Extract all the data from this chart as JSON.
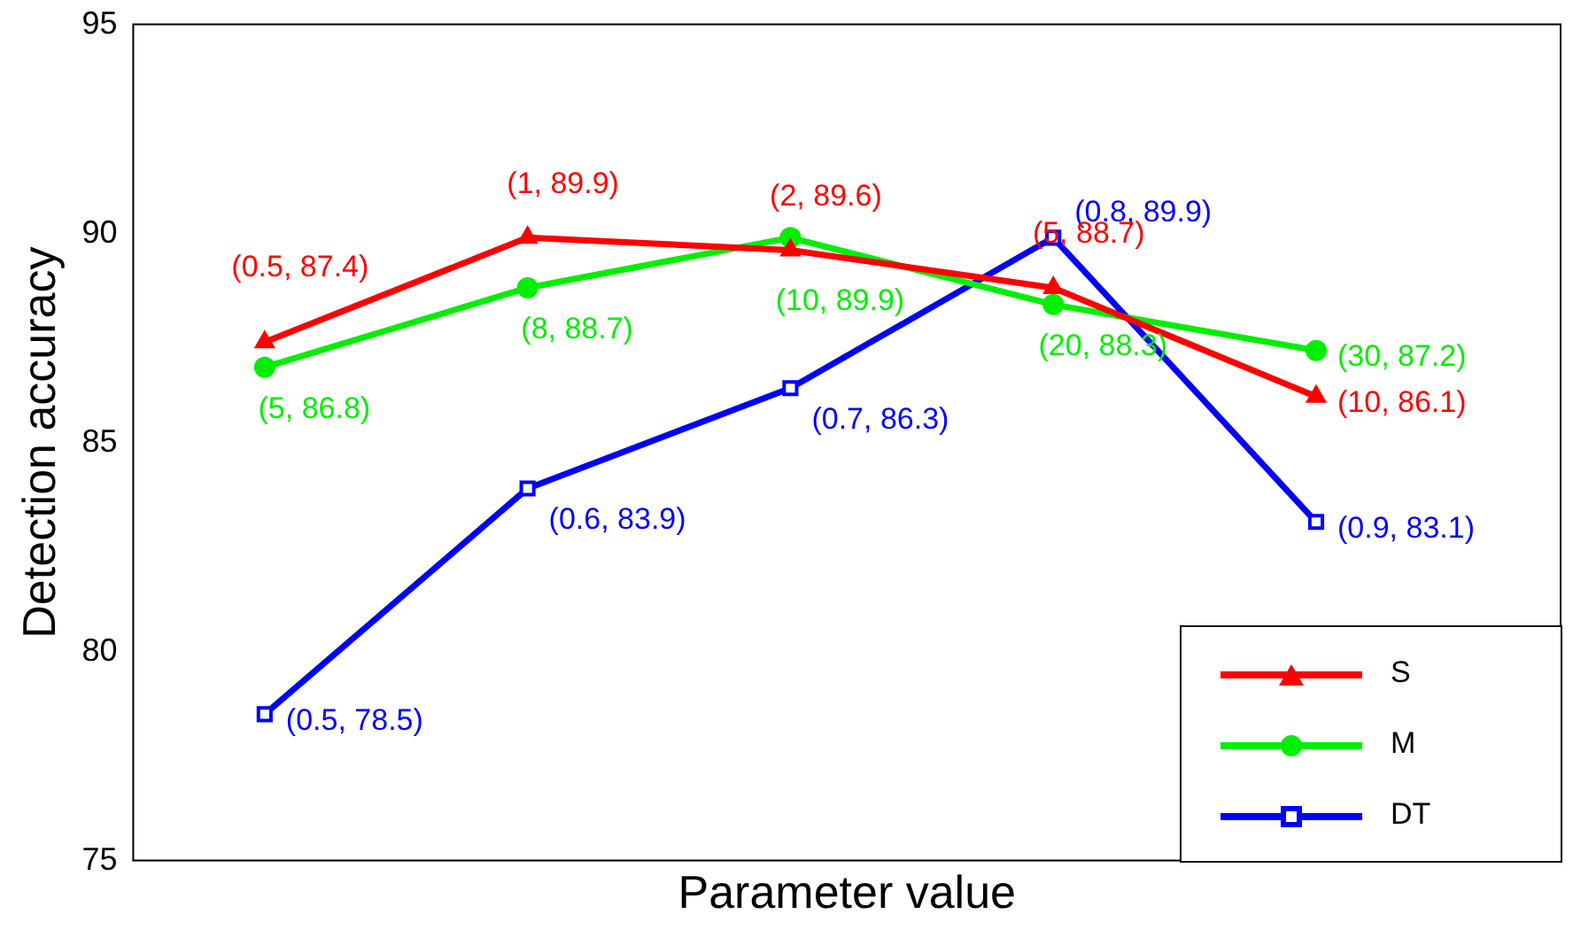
{
  "chart_data": {
    "type": "line",
    "xlabel": "Parameter value",
    "ylabel": "Detection accuracy",
    "categories": [
      null,
      null,
      null,
      null,
      null
    ],
    "ylim": [
      75,
      95
    ],
    "yticks": [
      75,
      80,
      85,
      90,
      95
    ],
    "grid": false,
    "legend": "bottom right",
    "tick_labels": "y",
    "series": [
      {
        "name": "S",
        "color": "#ff0000",
        "marker": "triangle",
        "values": [
          87.4,
          89.9,
          89.6,
          88.7,
          86.1
        ],
        "value_labels": [
          "(0.5, 87.4)",
          "(1, 89.9)",
          "(2, 89.6)",
          "(5, 88.7)",
          "(10, 86.1)"
        ]
      },
      {
        "name": "M",
        "color": "#00ee00",
        "marker": "circle",
        "values": [
          86.8,
          88.7,
          89.9,
          88.3,
          87.2
        ],
        "value_labels": [
          "(5, 86.8)",
          "(8, 88.7)",
          "(10, 89.9)",
          "(20, 88.3)",
          "(30, 87.2)"
        ]
      },
      {
        "name": "DT",
        "color": "#0000ff",
        "marker": "square",
        "values": [
          78.5,
          83.9,
          86.3,
          89.9,
          83.1
        ],
        "value_labels": [
          "(0.5, 78.5)",
          "(0.6, 83.9)",
          "(0.7, 86.3)",
          "(0.8, 89.9)",
          "(0.9, 83.1)"
        ]
      }
    ]
  }
}
